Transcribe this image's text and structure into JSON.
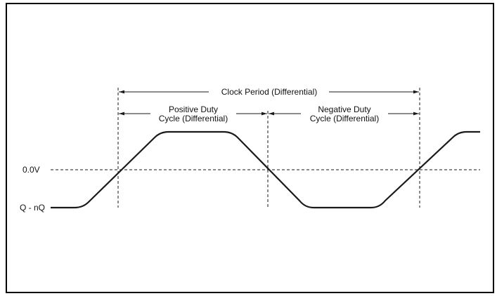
{
  "labels": {
    "clock_period": "Clock Period (Differential)",
    "positive_duty_line1": "Positive Duty",
    "positive_duty_line2": "Cycle (Differential)",
    "negative_duty_line1": "Negative Duty",
    "negative_duty_line2": "Cycle (Differential)",
    "zero_level": "0.0V",
    "signal_name": "Q - nQ"
  },
  "colors": {
    "line": "#1a1a1a",
    "frame": "#000000"
  }
}
